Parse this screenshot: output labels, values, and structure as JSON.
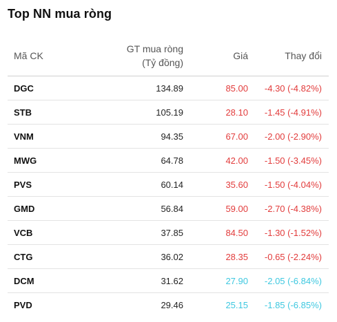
{
  "title": "Top NN mua ròng",
  "columns": {
    "code": "Mã CK",
    "value_line1": "GT mua ròng",
    "value_line2": "(Tỷ đồng)",
    "price": "Giá",
    "change": "Thay đổi"
  },
  "colors": {
    "down": "#e23b3b",
    "floor": "#3ec8e0"
  },
  "rows": [
    {
      "code": "DGC",
      "value": "134.89",
      "price": "85.00",
      "change": "-4.30 (-4.82%)",
      "status": "down"
    },
    {
      "code": "STB",
      "value": "105.19",
      "price": "28.10",
      "change": "-1.45 (-4.91%)",
      "status": "down"
    },
    {
      "code": "VNM",
      "value": "94.35",
      "price": "67.00",
      "change": "-2.00 (-2.90%)",
      "status": "down"
    },
    {
      "code": "MWG",
      "value": "64.78",
      "price": "42.00",
      "change": "-1.50 (-3.45%)",
      "status": "down"
    },
    {
      "code": "PVS",
      "value": "60.14",
      "price": "35.60",
      "change": "-1.50 (-4.04%)",
      "status": "down"
    },
    {
      "code": "GMD",
      "value": "56.84",
      "price": "59.00",
      "change": "-2.70 (-4.38%)",
      "status": "down"
    },
    {
      "code": "VCB",
      "value": "37.85",
      "price": "84.50",
      "change": "-1.30 (-1.52%)",
      "status": "down"
    },
    {
      "code": "CTG",
      "value": "36.02",
      "price": "28.35",
      "change": "-0.65 (-2.24%)",
      "status": "down"
    },
    {
      "code": "DCM",
      "value": "31.62",
      "price": "27.90",
      "change": "-2.05 (-6.84%)",
      "status": "floor"
    },
    {
      "code": "PVD",
      "value": "29.46",
      "price": "25.15",
      "change": "-1.85 (-6.85%)",
      "status": "floor"
    }
  ]
}
